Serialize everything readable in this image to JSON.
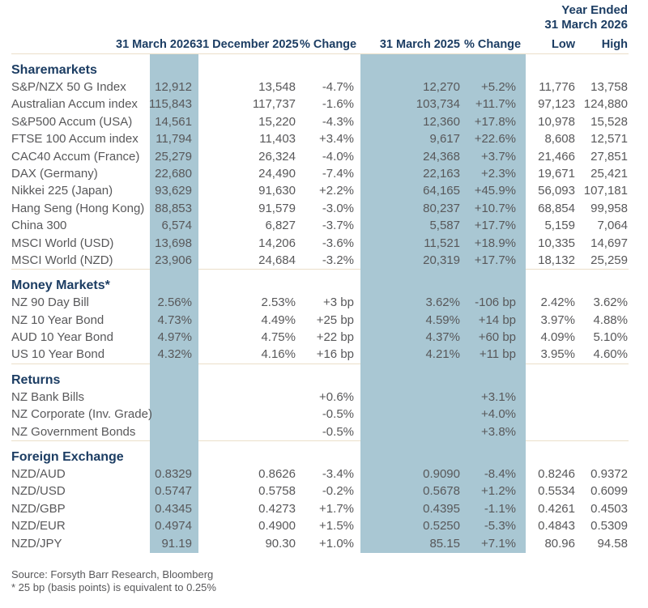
{
  "colors": {
    "accent_navy": "#1c3d63",
    "band_blue": "#a9c7d3",
    "divider_tan": "#ebdfc9",
    "text_gray": "#58585a"
  },
  "header": {
    "year_ended_line1": "Year Ended",
    "year_ended_line2": "31 March 2026",
    "columns": [
      "31 March 2026",
      "31 December 2025",
      "% Change",
      "31 March 2025",
      "% Change",
      "Low",
      "High"
    ]
  },
  "sections": [
    {
      "title": "Sharemarkets",
      "rows": [
        {
          "label": "S&P/NZX 50 G Index",
          "values": [
            "12,912",
            "13,548",
            "-4.7%",
            "12,270",
            "+5.2%",
            "11,776",
            "13,758"
          ]
        },
        {
          "label": "Australian Accum index",
          "values": [
            "115,843",
            "117,737",
            "-1.6%",
            "103,734",
            "+11.7%",
            "97,123",
            "124,880"
          ]
        },
        {
          "label": "S&P500 Accum (USA)",
          "values": [
            "14,561",
            "15,220",
            "-4.3%",
            "12,360",
            "+17.8%",
            "10,978",
            "15,528"
          ]
        },
        {
          "label": "FTSE 100 Accum index",
          "values": [
            "11,794",
            "11,403",
            "+3.4%",
            "9,617",
            "+22.6%",
            "8,608",
            "12,571"
          ]
        },
        {
          "label": "CAC40 Accum (France)",
          "values": [
            "25,279",
            "26,324",
            "-4.0%",
            "24,368",
            "+3.7%",
            "21,466",
            "27,851"
          ]
        },
        {
          "label": "DAX (Germany)",
          "values": [
            "22,680",
            "24,490",
            "-7.4%",
            "22,163",
            "+2.3%",
            "19,671",
            "25,421"
          ]
        },
        {
          "label": "Nikkei 225 (Japan)",
          "values": [
            "93,629",
            "91,630",
            "+2.2%",
            "64,165",
            "+45.9%",
            "56,093",
            "107,181"
          ]
        },
        {
          "label": "Hang Seng (Hong Kong)",
          "values": [
            "88,853",
            "91,579",
            "-3.0%",
            "80,237",
            "+10.7%",
            "68,854",
            "99,958"
          ]
        },
        {
          "label": "China 300",
          "values": [
            "6,574",
            "6,827",
            "-3.7%",
            "5,587",
            "+17.7%",
            "5,159",
            "7,064"
          ]
        },
        {
          "label": "MSCI World (USD)",
          "values": [
            "13,698",
            "14,206",
            "-3.6%",
            "11,521",
            "+18.9%",
            "10,335",
            "14,697"
          ]
        },
        {
          "label": "MSCI World (NZD)",
          "values": [
            "23,906",
            "24,684",
            "-3.2%",
            "20,319",
            "+17.7%",
            "18,132",
            "25,259"
          ]
        }
      ]
    },
    {
      "title": "Money Markets*",
      "rows": [
        {
          "label": "NZ 90 Day Bill",
          "values": [
            "2.56%",
            "2.53%",
            "+3 bp",
            "3.62%",
            "-106 bp",
            "2.42%",
            "3.62%"
          ]
        },
        {
          "label": "NZ 10 Year Bond",
          "values": [
            "4.73%",
            "4.49%",
            "+25 bp",
            "4.59%",
            "+14 bp",
            "3.97%",
            "4.88%"
          ]
        },
        {
          "label": "AUD 10 Year Bond",
          "values": [
            "4.97%",
            "4.75%",
            "+22 bp",
            "4.37%",
            "+60 bp",
            "4.09%",
            "5.10%"
          ]
        },
        {
          "label": "US 10 Year Bond",
          "values": [
            "4.32%",
            "4.16%",
            "+16 bp",
            "4.21%",
            "+11 bp",
            "3.95%",
            "4.60%"
          ]
        }
      ]
    },
    {
      "title": "Returns",
      "rows": [
        {
          "label": "NZ Bank Bills",
          "values": [
            "",
            "",
            "+0.6%",
            "",
            "+3.1%",
            "",
            ""
          ]
        },
        {
          "label": "NZ Corporate (Inv. Grade)",
          "values": [
            "",
            "",
            "-0.5%",
            "",
            "+4.0%",
            "",
            ""
          ]
        },
        {
          "label": "NZ Government Bonds",
          "values": [
            "",
            "",
            "-0.5%",
            "",
            "+3.8%",
            "",
            ""
          ]
        }
      ]
    },
    {
      "title": "Foreign Exchange",
      "rows": [
        {
          "label": "NZD/AUD",
          "values": [
            "0.8329",
            "0.8626",
            "-3.4%",
            "0.9090",
            "-8.4%",
            "0.8246",
            "0.9372"
          ]
        },
        {
          "label": "NZD/USD",
          "values": [
            "0.5747",
            "0.5758",
            "-0.2%",
            "0.5678",
            "+1.2%",
            "0.5534",
            "0.6099"
          ]
        },
        {
          "label": "NZD/GBP",
          "values": [
            "0.4345",
            "0.4273",
            "+1.7%",
            "0.4395",
            "-1.1%",
            "0.4261",
            "0.4503"
          ]
        },
        {
          "label": "NZD/EUR",
          "values": [
            "0.4974",
            "0.4900",
            "+1.5%",
            "0.5250",
            "-5.3%",
            "0.4843",
            "0.5309"
          ]
        },
        {
          "label": "NZD/JPY",
          "values": [
            "91.19",
            "90.30",
            "+1.0%",
            "85.15",
            "+7.1%",
            "80.96",
            "94.58"
          ]
        }
      ]
    }
  ],
  "footer": {
    "source": "Source: Forsyth Barr Research, Bloomberg",
    "note": "* 25 bp (basis points) is equivalent to 0.25%"
  }
}
